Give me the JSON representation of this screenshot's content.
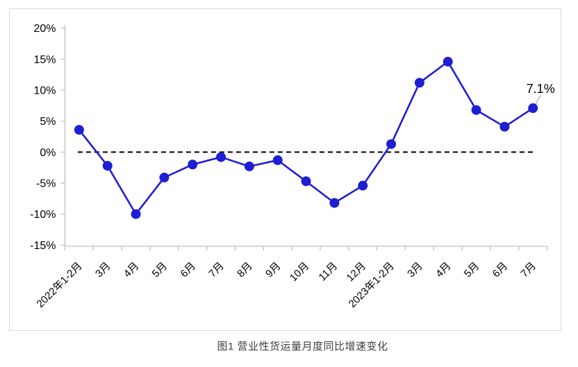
{
  "chart_data": {
    "type": "line",
    "caption": "图1 营业性货运量月度同比增速变化",
    "categories": [
      "2022年1-2月",
      "3月",
      "4月",
      "5月",
      "6月",
      "7月",
      "8月",
      "9月",
      "10月",
      "11月",
      "12月",
      "2023年1-2月",
      "3月",
      "4月",
      "5月",
      "6月",
      "7月"
    ],
    "values": [
      3.6,
      -2.2,
      -10.0,
      -4.1,
      -2.0,
      -0.8,
      -2.3,
      -1.3,
      -4.7,
      -8.2,
      -5.4,
      1.3,
      11.2,
      14.6,
      6.8,
      4.1,
      7.1
    ],
    "y_ticks": [
      {
        "label": "20%",
        "value": 20
      },
      {
        "label": "15%",
        "value": 15
      },
      {
        "label": "10%",
        "value": 10
      },
      {
        "label": "5%",
        "value": 5
      },
      {
        "label": "0%",
        "value": 0
      },
      {
        "label": "-5%",
        "value": -5
      },
      {
        "label": "-10%",
        "value": -10
      },
      {
        "label": "-15%",
        "value": -15
      }
    ],
    "ylim": [
      -15,
      20
    ],
    "grid": false,
    "legend": false,
    "zero_line": {
      "style": "dashed"
    },
    "annotation": {
      "label": "7.1%",
      "point_index": 16
    },
    "colors": {
      "line": "#1e1ed2",
      "marker": "#1e1ed2",
      "axis": "#bfbfbf",
      "zero_line": "#000000",
      "tick_text": "#000000",
      "annotation_text": "#000000",
      "leader": "#a6a6a6",
      "border": "#d9d9d9",
      "caption_text": "#404040"
    }
  }
}
